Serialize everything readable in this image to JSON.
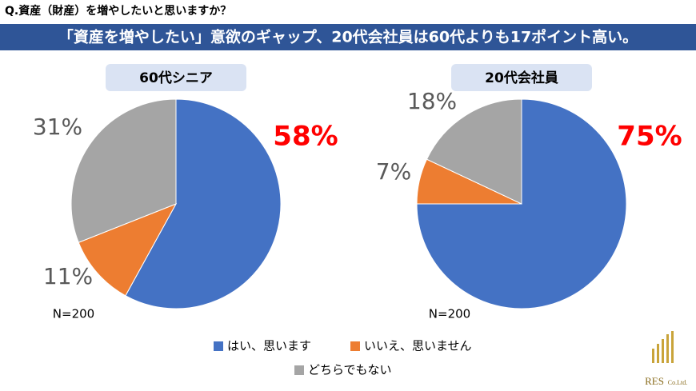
{
  "question": "Q.資産（財産）を増やしたいと思いますか？",
  "banner": "「資産を増やしたい」意欲のギャップ、20代会社員は60代よりも17ポイント高い。",
  "legend": {
    "labels": [
      "はい、思います",
      "いいえ、思いません",
      "どちらでもない"
    ],
    "colors": [
      "#4472c4",
      "#ed7d31",
      "#a5a5a5"
    ]
  },
  "chart_data": [
    {
      "type": "pie",
      "title": "60代シニア",
      "values": [
        58,
        11,
        31
      ],
      "value_labels": [
        "58%",
        "11%",
        "31%"
      ],
      "note": "N=200"
    },
    {
      "type": "pie",
      "title": "20代会社員",
      "values": [
        75,
        7,
        18
      ],
      "value_labels": [
        "75%",
        "7%",
        "18%"
      ],
      "note": "N=200"
    }
  ],
  "highlight_color": "#ff0000",
  "label_color": "#595959",
  "logo": {
    "name": "RES",
    "suffix": "Co.Ltd."
  }
}
